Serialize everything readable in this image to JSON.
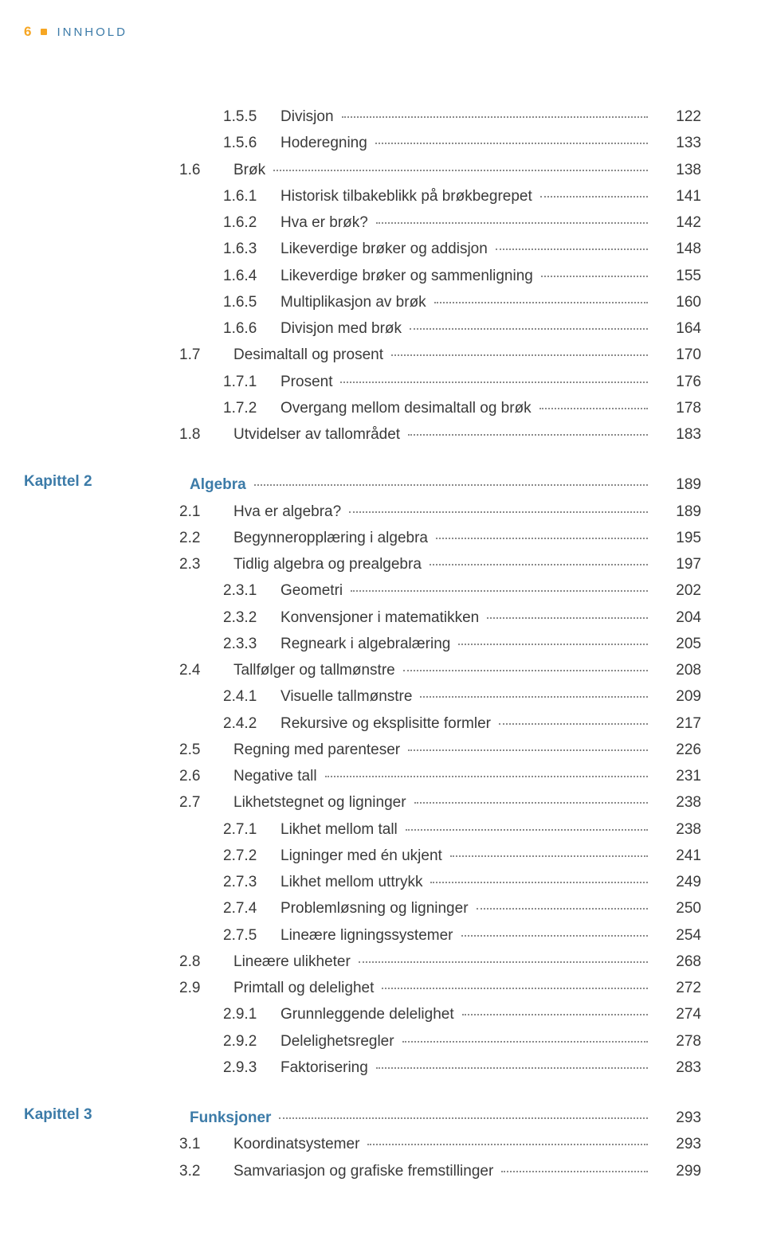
{
  "header": {
    "page_number": "6",
    "label": "INNHOLD"
  },
  "blocks": [
    {
      "chapter_label": "",
      "rows": [
        {
          "indent": 2,
          "num": "1.5.5",
          "title": "Divisjon",
          "page": "122",
          "bold": false
        },
        {
          "indent": 2,
          "num": "1.5.6",
          "title": "Hoderegning",
          "page": "133",
          "bold": false
        },
        {
          "indent": 1,
          "num": "1.6",
          "title": "Brøk",
          "page": "138",
          "bold": false
        },
        {
          "indent": 2,
          "num": "1.6.1",
          "title": "Historisk tilbakeblikk på brøkbegrepet",
          "page": "141",
          "bold": false
        },
        {
          "indent": 2,
          "num": "1.6.2",
          "title": "Hva er brøk?",
          "page": "142",
          "bold": false
        },
        {
          "indent": 2,
          "num": "1.6.3",
          "title": "Likeverdige brøker og addisjon",
          "page": "148",
          "bold": false
        },
        {
          "indent": 2,
          "num": "1.6.4",
          "title": "Likeverdige brøker og sammenligning",
          "page": "155",
          "bold": false
        },
        {
          "indent": 2,
          "num": "1.6.5",
          "title": "Multiplikasjon av brøk",
          "page": "160",
          "bold": false
        },
        {
          "indent": 2,
          "num": "1.6.6",
          "title": "Divisjon med brøk",
          "page": "164",
          "bold": false
        },
        {
          "indent": 1,
          "num": "1.7",
          "title": "Desimaltall og prosent",
          "page": "170",
          "bold": false
        },
        {
          "indent": 2,
          "num": "1.7.1",
          "title": "Prosent",
          "page": "176",
          "bold": false
        },
        {
          "indent": 2,
          "num": "1.7.2",
          "title": "Overgang mellom desimaltall og brøk",
          "page": "178",
          "bold": false
        },
        {
          "indent": 1,
          "num": "1.8",
          "title": "Utvidelser av tallområdet",
          "page": "183",
          "bold": false
        }
      ]
    },
    {
      "chapter_label": "Kapittel 2",
      "rows": [
        {
          "indent": 0,
          "num": "",
          "title": "Algebra",
          "page": "189",
          "bold": true
        },
        {
          "indent": 1,
          "num": "2.1",
          "title": "Hva er algebra?",
          "page": "189",
          "bold": false
        },
        {
          "indent": 1,
          "num": "2.2",
          "title": "Begynneropplæring i algebra",
          "page": "195",
          "bold": false
        },
        {
          "indent": 1,
          "num": "2.3",
          "title": "Tidlig algebra og prealgebra",
          "page": "197",
          "bold": false
        },
        {
          "indent": 2,
          "num": "2.3.1",
          "title": "Geometri",
          "page": "202",
          "bold": false
        },
        {
          "indent": 2,
          "num": "2.3.2",
          "title": "Konvensjoner i matematikken",
          "page": "204",
          "bold": false
        },
        {
          "indent": 2,
          "num": "2.3.3",
          "title": "Regneark i algebralæring",
          "page": "205",
          "bold": false
        },
        {
          "indent": 1,
          "num": "2.4",
          "title": "Tallfølger og tallmønstre",
          "page": "208",
          "bold": false
        },
        {
          "indent": 2,
          "num": "2.4.1",
          "title": "Visuelle tallmønstre",
          "page": "209",
          "bold": false
        },
        {
          "indent": 2,
          "num": "2.4.2",
          "title": "Rekursive og eksplisitte formler",
          "page": "217",
          "bold": false
        },
        {
          "indent": 1,
          "num": "2.5",
          "title": "Regning med parenteser",
          "page": "226",
          "bold": false
        },
        {
          "indent": 1,
          "num": "2.6",
          "title": "Negative tall",
          "page": "231",
          "bold": false
        },
        {
          "indent": 1,
          "num": "2.7",
          "title": "Likhetstegnet og ligninger",
          "page": "238",
          "bold": false
        },
        {
          "indent": 2,
          "num": "2.7.1",
          "title": "Likhet mellom tall",
          "page": "238",
          "bold": false
        },
        {
          "indent": 2,
          "num": "2.7.2",
          "title": "Ligninger med én ukjent",
          "page": "241",
          "bold": false
        },
        {
          "indent": 2,
          "num": "2.7.3",
          "title": "Likhet mellom uttrykk",
          "page": "249",
          "bold": false
        },
        {
          "indent": 2,
          "num": "2.7.4",
          "title": "Problemløsning og ligninger",
          "page": "250",
          "bold": false
        },
        {
          "indent": 2,
          "num": "2.7.5",
          "title": "Lineære ligningssystemer",
          "page": "254",
          "bold": false
        },
        {
          "indent": 1,
          "num": "2.8",
          "title": "Lineære ulikheter",
          "page": "268",
          "bold": false
        },
        {
          "indent": 1,
          "num": "2.9",
          "title": "Primtall og delelighet",
          "page": "272",
          "bold": false
        },
        {
          "indent": 2,
          "num": "2.9.1",
          "title": "Grunnleggende delelighet",
          "page": "274",
          "bold": false
        },
        {
          "indent": 2,
          "num": "2.9.2",
          "title": "Delelighetsregler",
          "page": "278",
          "bold": false
        },
        {
          "indent": 2,
          "num": "2.9.3",
          "title": "Faktorisering",
          "page": "283",
          "bold": false
        }
      ]
    },
    {
      "chapter_label": "Kapittel 3",
      "rows": [
        {
          "indent": 0,
          "num": "",
          "title": "Funksjoner",
          "page": "293",
          "bold": true
        },
        {
          "indent": 1,
          "num": "3.1",
          "title": "Koordinatsystemer",
          "page": "293",
          "bold": false
        },
        {
          "indent": 1,
          "num": "3.2",
          "title": "Samvariasjon og grafiske fremstillinger",
          "page": "299",
          "bold": false
        }
      ]
    }
  ]
}
